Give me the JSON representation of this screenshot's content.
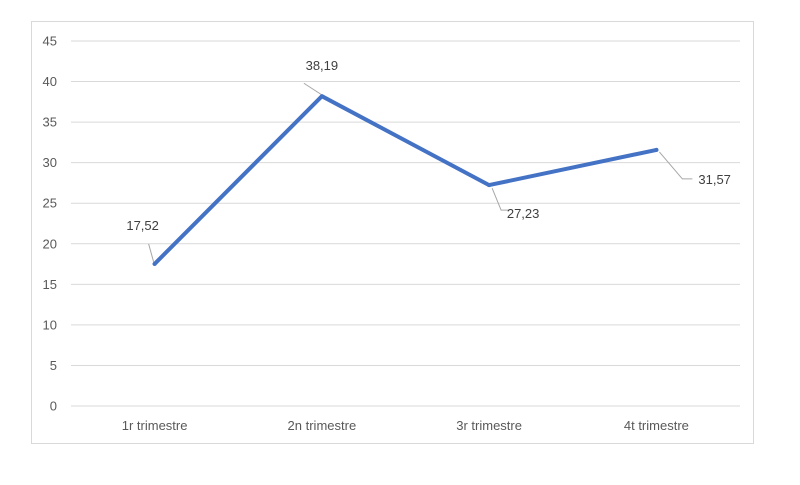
{
  "chart_data": {
    "type": "line",
    "categories": [
      "1r trimestre",
      "2n trimestre",
      "3r trimestre",
      "4t trimestre"
    ],
    "series": [
      {
        "values": [
          17.52,
          38.19,
          27.23,
          31.57
        ]
      }
    ],
    "data_labels": [
      "17,52",
      "38,19",
      "27,23",
      "31,57"
    ],
    "y_ticks": [
      "0",
      "5",
      "10",
      "15",
      "20",
      "25",
      "30",
      "35",
      "40",
      "45"
    ],
    "ylim": [
      0,
      45
    ],
    "grid": true,
    "legend": "none",
    "colors": {
      "line": "#4472c4",
      "grid": "#d9d9d9",
      "leader": "#a6a6a6"
    }
  }
}
